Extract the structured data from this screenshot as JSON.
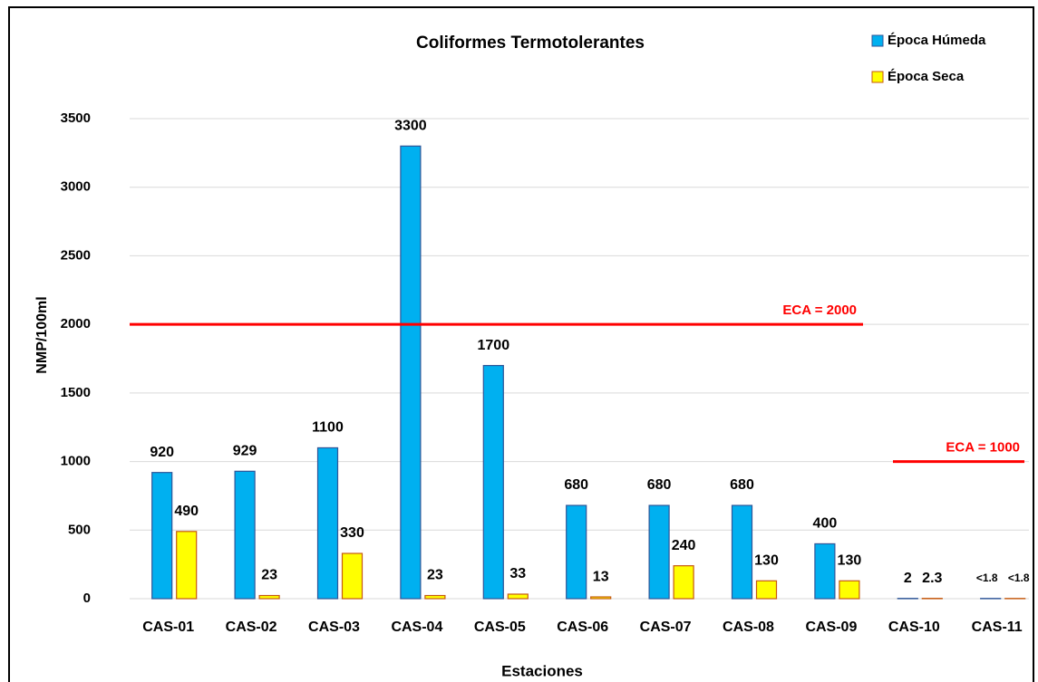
{
  "chart_data": {
    "type": "bar",
    "title": "Coliformes Termotolerantes",
    "x_label": "Estaciones",
    "y_label": "NMP/100ml",
    "categories": [
      "CAS-01",
      "CAS-02",
      "CAS-03",
      "CAS-04",
      "CAS-05",
      "CAS-06",
      "CAS-07",
      "CAS-08",
      "CAS-09",
      "CAS-10",
      "CAS-11"
    ],
    "series": [
      {
        "name": "Época Húmeda",
        "color": "#00b0f0",
        "values": [
          920,
          929,
          1100,
          3300,
          1700,
          680,
          680,
          680,
          400,
          2,
          1.8
        ],
        "value_labels": [
          "920",
          "929",
          "1100",
          "3300",
          "1700",
          "680",
          "680",
          "680",
          "400",
          "2",
          "<1.8"
        ]
      },
      {
        "name": "Época Seca",
        "color": "#ffff00",
        "values": [
          490,
          23,
          330,
          23,
          33,
          13,
          240,
          130,
          130,
          2.3,
          1.8
        ],
        "value_labels": [
          "490",
          "23",
          "330",
          "23",
          "33",
          "13",
          "240",
          "130",
          "130",
          "2.3",
          "<1.8"
        ]
      }
    ],
    "ylim": [
      0,
      3500
    ],
    "yticks": [
      0,
      500,
      1000,
      1500,
      2000,
      2500,
      3000,
      3500
    ],
    "grid": true,
    "legend": "top-right",
    "reference_lines": [
      {
        "label": "ECA  = 2000",
        "value": 2000,
        "color": "#ff0000"
      },
      {
        "label": "ECA = 1000",
        "value": 1000,
        "color": "#ff0000"
      }
    ]
  }
}
